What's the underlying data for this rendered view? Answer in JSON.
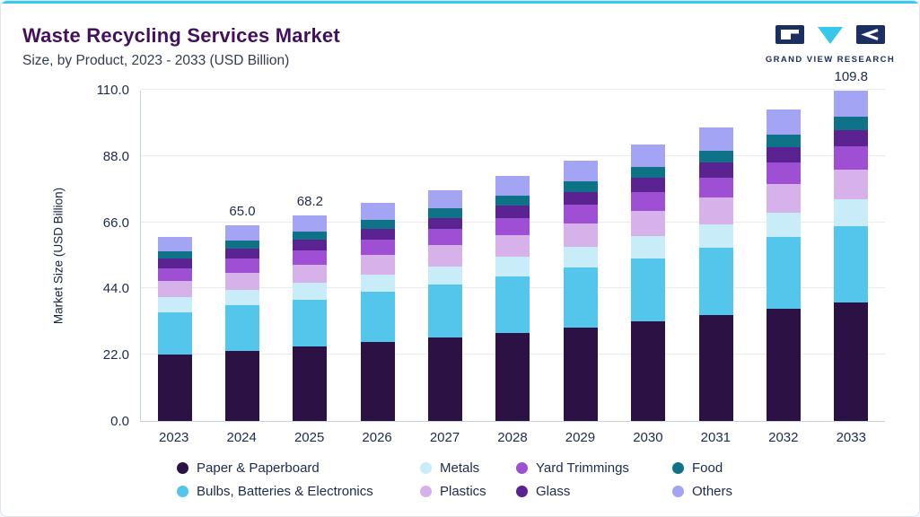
{
  "header": {
    "title": "Waste Recycling Services Market",
    "subtitle": "Size, by Product, 2023 - 2033 (USD Billion)",
    "logo_text": "GRAND VIEW RESEARCH"
  },
  "colors": {
    "top_accent": "#38c9ee",
    "title_text": "#43115c",
    "axis_text": "#1c2b4a",
    "logo_navy": "#1c2f63",
    "logo_cyan": "#35c8ec"
  },
  "chart_data": {
    "type": "bar",
    "stacked": true,
    "title": "Waste Recycling Services Market",
    "subtitle": "Size, by Product, 2023 - 2033 (USD Billion)",
    "xlabel": "",
    "ylabel": "Market Size (USD Billion)",
    "ylim": [
      0,
      110
    ],
    "yticks": [
      0.0,
      22.0,
      44.0,
      66.0,
      88.0,
      110.0
    ],
    "grid": "horizontal",
    "legend_position": "bottom",
    "categories": [
      "2023",
      "2024",
      "2025",
      "2026",
      "2027",
      "2028",
      "2029",
      "2030",
      "2031",
      "2032",
      "2033"
    ],
    "series": [
      {
        "name": "Paper & Paperboard",
        "color": "#2b1144",
        "values": [
          22.0,
          23.4,
          24.6,
          26.1,
          27.6,
          29.3,
          31.1,
          33.0,
          35.1,
          37.2,
          39.5
        ]
      },
      {
        "name": "Bulbs, Batteries & Electronics",
        "color": "#54c6ec",
        "values": [
          14.1,
          15.0,
          15.7,
          16.7,
          17.7,
          18.7,
          19.9,
          21.1,
          22.4,
          23.8,
          25.3
        ]
      },
      {
        "name": "Metals",
        "color": "#c9ecf9",
        "values": [
          4.9,
          5.0,
          5.5,
          5.8,
          6.1,
          6.5,
          6.9,
          7.3,
          7.8,
          8.3,
          8.8
        ]
      },
      {
        "name": "Plastics",
        "color": "#d7b1e9",
        "values": [
          5.5,
          5.9,
          6.1,
          6.5,
          6.9,
          7.3,
          7.8,
          8.3,
          8.8,
          9.3,
          9.9
        ]
      },
      {
        "name": "Yard Trimmings",
        "color": "#9e4fd4",
        "values": [
          4.3,
          4.6,
          4.8,
          5.1,
          5.4,
          5.7,
          6.1,
          6.4,
          6.8,
          7.2,
          7.7
        ]
      },
      {
        "name": "Glass",
        "color": "#5a2391",
        "values": [
          3.1,
          3.3,
          3.4,
          3.6,
          3.8,
          4.1,
          4.3,
          4.6,
          4.9,
          5.2,
          5.5
        ]
      },
      {
        "name": "Food",
        "color": "#0f7388",
        "values": [
          2.4,
          2.6,
          2.7,
          2.9,
          3.1,
          3.3,
          3.5,
          3.7,
          3.9,
          4.1,
          4.3
        ]
      },
      {
        "name": "Others",
        "color": "#a3a4f3",
        "values": [
          4.9,
          5.2,
          5.4,
          5.8,
          6.1,
          6.5,
          6.9,
          7.3,
          7.8,
          8.3,
          8.8
        ]
      }
    ],
    "total_labels": {
      "2024": "65.0",
      "2025": "68.2",
      "2033": "109.8"
    },
    "legend_rows": [
      [
        "Paper & Paperboard",
        "Metals",
        "Yard Trimmings",
        "Food"
      ],
      [
        "Bulbs, Batteries & Electronics",
        "Plastics",
        "Glass",
        "Others"
      ]
    ]
  }
}
